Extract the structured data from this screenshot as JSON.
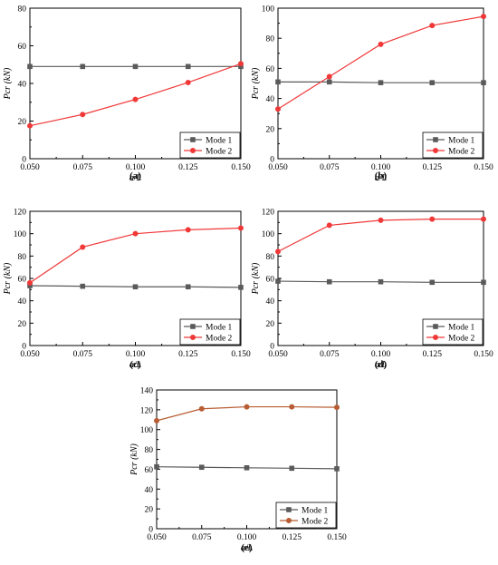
{
  "chart_data": [
    {
      "type": "line",
      "panel_label": "(a)",
      "x": [
        0.05,
        0.075,
        0.1,
        0.125,
        0.15
      ],
      "xticks": [
        "0.050",
        "0.075",
        "0.100",
        "0.125",
        "0.150"
      ],
      "yticks": [
        "0",
        "20",
        "40",
        "60",
        "80"
      ],
      "xlim": [
        0.05,
        0.15
      ],
      "ylim": [
        0,
        80
      ],
      "xlabel": "a/L",
      "ylabel": "Pcr (kN)",
      "legend": "bottom-right",
      "series": [
        {
          "name": "Mode 1",
          "values": [
            49,
            49,
            49,
            49,
            49
          ],
          "color": "#5a5a5a"
        },
        {
          "name": "Mode 2",
          "values": [
            17.5,
            23.5,
            31.5,
            40.5,
            50.5
          ],
          "color": "#f03838"
        }
      ]
    },
    {
      "type": "line",
      "panel_label": "(b)",
      "x": [
        0.05,
        0.075,
        0.1,
        0.125,
        0.15
      ],
      "xticks": [
        "0.050",
        "0.075",
        "0.100",
        "0.125",
        "0.150"
      ],
      "yticks": [
        "0",
        "20",
        "40",
        "60",
        "80",
        "100"
      ],
      "xlim": [
        0.05,
        0.15
      ],
      "ylim": [
        0,
        100
      ],
      "xlabel": "a/L",
      "ylabel": "Pcr (kN)",
      "legend": "bottom-right",
      "series": [
        {
          "name": "Mode 1",
          "values": [
            51,
            51,
            50.5,
            50.5,
            50.5
          ],
          "color": "#5a5a5a"
        },
        {
          "name": "Mode 2",
          "values": [
            33,
            54.5,
            76,
            88.5,
            94.5
          ],
          "color": "#f03838"
        }
      ]
    },
    {
      "type": "line",
      "panel_label": "(c)",
      "x": [
        0.05,
        0.075,
        0.1,
        0.125,
        0.15
      ],
      "xticks": [
        "0.050",
        "0.075",
        "0.100",
        "0.125",
        "0.150"
      ],
      "yticks": [
        "0",
        "20",
        "40",
        "60",
        "80",
        "100",
        "120"
      ],
      "xlim": [
        0.05,
        0.15
      ],
      "ylim": [
        0,
        120
      ],
      "xlabel": "a/L",
      "ylabel": "Pcr (kN)",
      "legend": "bottom-right",
      "series": [
        {
          "name": "Mode 1",
          "values": [
            53.5,
            53,
            52.5,
            52.5,
            52
          ],
          "color": "#5a5a5a"
        },
        {
          "name": "Mode 2",
          "values": [
            56,
            88,
            100,
            103.5,
            105
          ],
          "color": "#f03838"
        }
      ]
    },
    {
      "type": "line",
      "panel_label": "(d)",
      "x": [
        0.05,
        0.075,
        0.1,
        0.125,
        0.15
      ],
      "xticks": [
        "0.050",
        "0.075",
        "0.100",
        "0.125",
        "0.150"
      ],
      "yticks": [
        "0",
        "20",
        "40",
        "60",
        "80",
        "100",
        "120"
      ],
      "xlim": [
        0.05,
        0.15
      ],
      "ylim": [
        0,
        120
      ],
      "xlabel": "a/L",
      "ylabel": "Pcr (kN)",
      "legend": "bottom-right",
      "series": [
        {
          "name": "Mode 1",
          "values": [
            57.5,
            57,
            57,
            56.5,
            56.5
          ],
          "color": "#5a5a5a"
        },
        {
          "name": "Mode 2",
          "values": [
            84,
            107.5,
            112,
            113,
            113
          ],
          "color": "#f03838"
        }
      ]
    },
    {
      "type": "line",
      "panel_label": "(e)",
      "x": [
        0.05,
        0.075,
        0.1,
        0.125,
        0.15
      ],
      "xticks": [
        "0.050",
        "0.075",
        "0.100",
        "0.125",
        "0.150"
      ],
      "yticks": [
        "0",
        "20",
        "40",
        "60",
        "80",
        "100",
        "120",
        "140"
      ],
      "xlim": [
        0.05,
        0.15
      ],
      "ylim": [
        0,
        140
      ],
      "xlabel": "a/L",
      "ylabel": "Pcr (kN)",
      "legend": "bottom-right",
      "series": [
        {
          "name": "Mode 1",
          "values": [
            62.5,
            62,
            61.5,
            61,
            60.5
          ],
          "color": "#5a5a5a"
        },
        {
          "name": "Mode 2",
          "values": [
            109,
            121,
            123,
            123,
            122.5
          ],
          "color": "#b85d33"
        }
      ]
    }
  ]
}
